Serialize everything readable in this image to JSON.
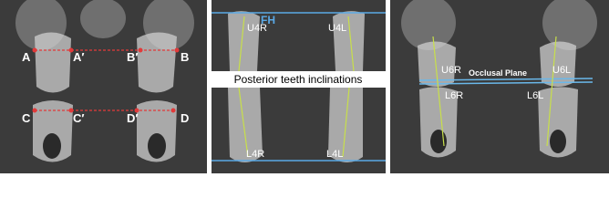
{
  "panel_1": {
    "labels": [
      "A",
      "A′",
      "B′",
      "B",
      "C",
      "C′",
      "D′",
      "D"
    ]
  },
  "panel_2": {
    "reference": "FH",
    "upper_labels": [
      "U4R",
      "U4L"
    ],
    "caption": "Posterior teeth inclinations",
    "lower_labels": [
      "L4R",
      "L4L"
    ]
  },
  "panel_3": {
    "upper_labels": [
      "U6R",
      "U6L"
    ],
    "plane": "Occlusal Plane",
    "lower_labels": [
      "L6R",
      "L6L"
    ]
  }
}
